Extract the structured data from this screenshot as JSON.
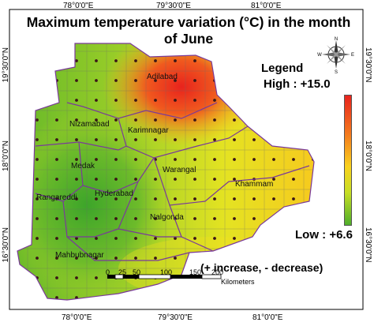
{
  "title": "Maximum temperature variation (°C) in the month of June",
  "axes": {
    "top_ticks": [
      "78°0'0\"E",
      "79°30'0\"E",
      "81°0'0\"E"
    ],
    "bottom_ticks": [
      "78°0'0\"E",
      "79°30'0\"E",
      "81°0'0\"E"
    ],
    "left_ticks": [
      "19°30'0\"N",
      "18°0'0\"N",
      "16°30'0\"N"
    ],
    "right_ticks": [
      "19°30'0\"N",
      "18°0'0\"N",
      "16°30'0\"N"
    ]
  },
  "legend": {
    "title": "Legend",
    "high": "High : +15.0",
    "low": "Low : +6.6",
    "colors": [
      "#e8231d",
      "#f47a1e",
      "#f9d21e",
      "#c6de25",
      "#4fae2a"
    ]
  },
  "note": "(+ increase, - decrease)",
  "scale_bar": {
    "labels": [
      "0",
      "25",
      "50",
      "100",
      "150",
      "200"
    ],
    "unit": "Kilometers"
  },
  "places": [
    "Adilabad",
    "Nizamabad",
    "Karimnagar",
    "Medak",
    "Warangal",
    "Khammam",
    "Rangareddi",
    "Hyderabad",
    "Nalgonda",
    "Mahbubnagar"
  ],
  "north_arrow": {
    "n": "N",
    "s": "S",
    "e": "E",
    "w": "W"
  }
}
